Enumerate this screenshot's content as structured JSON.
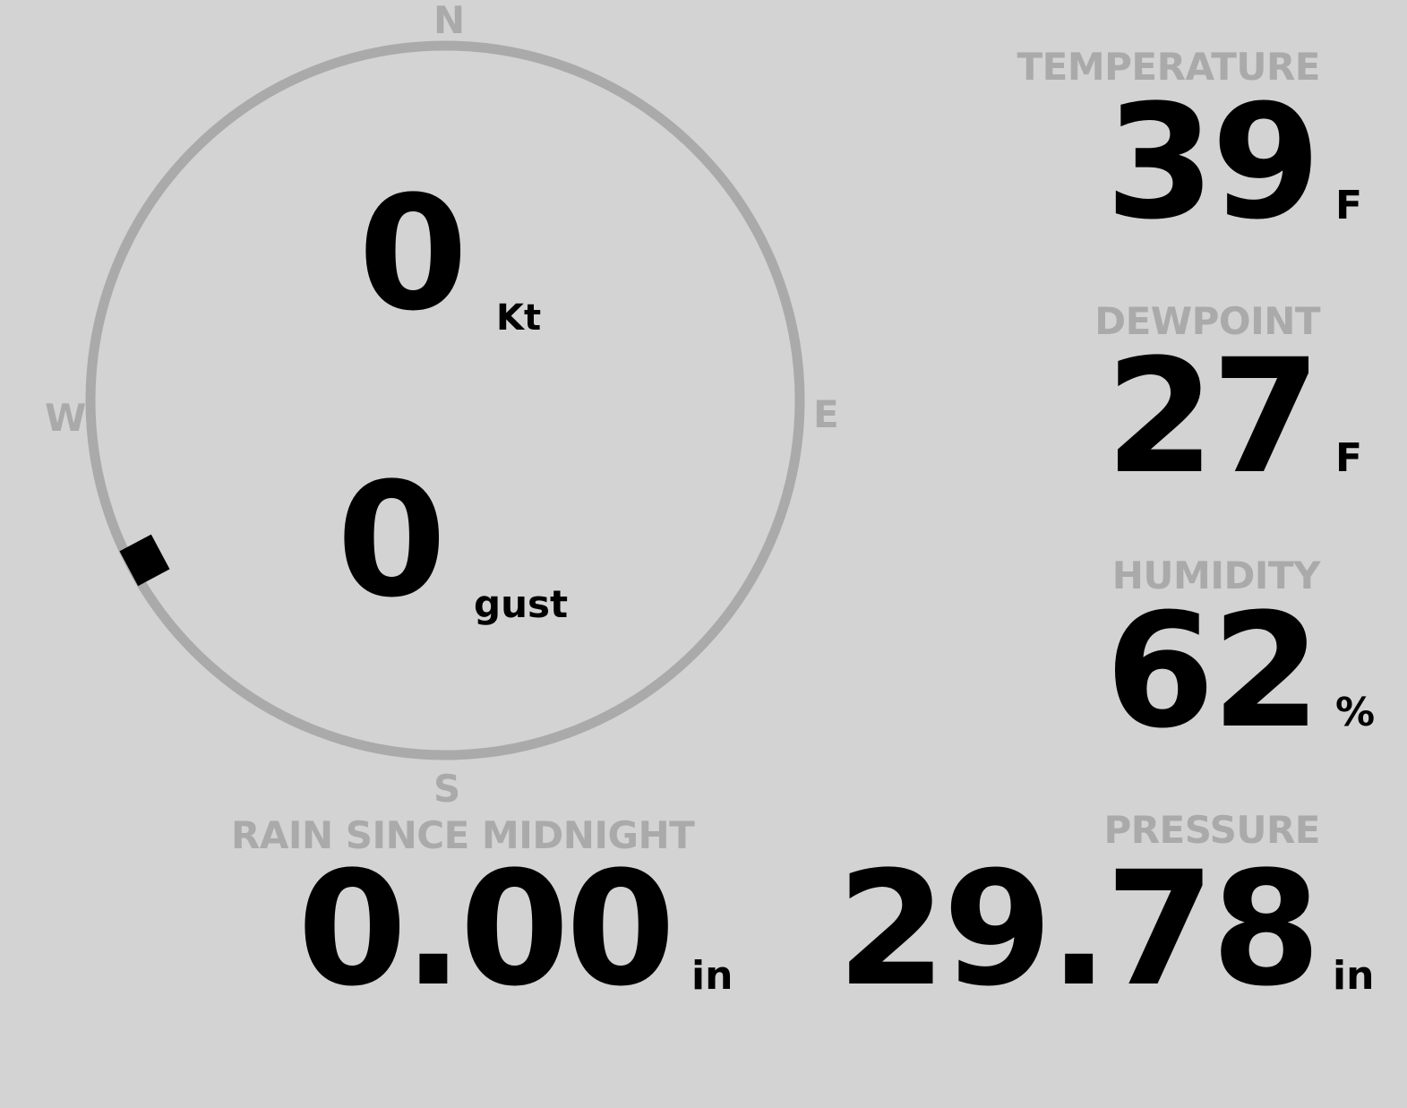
{
  "compass": {
    "north": "N",
    "east": "E",
    "south": "S",
    "west": "W",
    "wind_direction_deg": 242,
    "ring_color": "#aaaaaa",
    "marker_color": "#000000"
  },
  "wind": {
    "speed": "0",
    "speed_unit": "Kt",
    "gust": "0",
    "gust_unit": "gust"
  },
  "temperature": {
    "label": "TEMPERATURE",
    "value": "39",
    "unit": "F"
  },
  "dewpoint": {
    "label": "DEWPOINT",
    "value": "27",
    "unit": "F"
  },
  "humidity": {
    "label": "HUMIDITY",
    "value": "62",
    "unit": "%"
  },
  "rain": {
    "label": "RAIN SINCE MIDNIGHT",
    "value": "0.00",
    "unit": "in"
  },
  "pressure": {
    "label": "PRESSURE",
    "value": "29.78",
    "unit": "in"
  },
  "colors": {
    "background": "#d3d3d3",
    "label": "#aaaaaa",
    "value": "#000000"
  }
}
